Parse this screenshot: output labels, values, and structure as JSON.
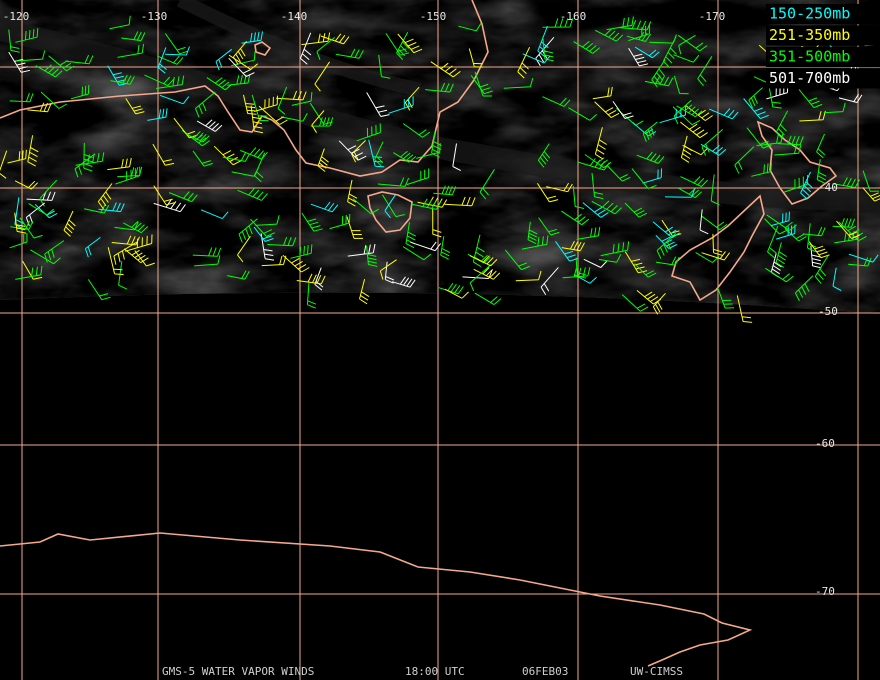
{
  "map": {
    "longitude_labels": [
      "-120",
      "-130",
      "-140",
      "-150",
      "-160",
      "-170"
    ],
    "latitude_labels": [
      "-40",
      "-50",
      "-60",
      "-70"
    ],
    "legend": [
      {
        "label": "150-250mb",
        "color": "#00ffff"
      },
      {
        "label": "251-350mb",
        "color": "#ffff00"
      },
      {
        "label": "351-500mb",
        "color": "#00ff00"
      },
      {
        "label": "501-700mb",
        "color": "#ffffff"
      }
    ],
    "footer": [
      "GMS-5 WATER VAPOR WINDS",
      "18:00 UTC",
      "06FEB03",
      "UW-CIMSS"
    ]
  }
}
